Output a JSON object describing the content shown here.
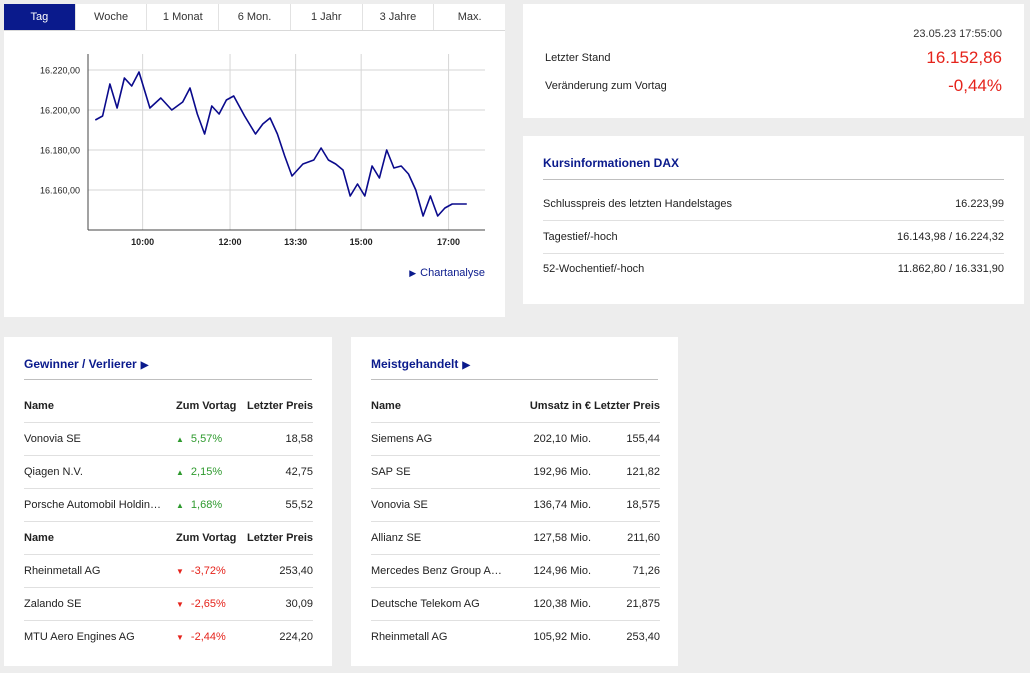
{
  "tabs": [
    "Tag",
    "Woche",
    "1 Monat",
    "6 Mon.",
    "1 Jahr",
    "3 Jahre",
    "Max."
  ],
  "active_tab": "Tag",
  "chart_data": {
    "type": "line",
    "x_ticks": [
      "10:00",
      "12:00",
      "13:30",
      "15:00",
      "17:00"
    ],
    "y_ticks": [
      "16.160,00",
      "16.180,00",
      "16.200,00",
      "16.220,00"
    ],
    "ylim": [
      16140,
      16228
    ],
    "color": "#0a0a8c",
    "series": [
      {
        "x_minutes_of_day": [
          535,
          545,
          555,
          565,
          575,
          585,
          595,
          610,
          625,
          640,
          655,
          665,
          675,
          685,
          695,
          705,
          715,
          725,
          740,
          755,
          765,
          775,
          785,
          795,
          805,
          820,
          835,
          845,
          855,
          865,
          875,
          885,
          895,
          905,
          915,
          925,
          935,
          945,
          955,
          965,
          975,
          985,
          995,
          1005,
          1015,
          1025,
          1035,
          1045
        ],
        "values": [
          16195,
          16197,
          16213,
          16201,
          16216,
          16212,
          16219,
          16201,
          16206,
          16200,
          16204,
          16211,
          16198,
          16188,
          16202,
          16198,
          16205,
          16207,
          16197,
          16188,
          16193,
          16196,
          16188,
          16177,
          16167,
          16173,
          16175,
          16181,
          16175,
          16173,
          16170,
          16157,
          16163,
          16157,
          16172,
          16166,
          16180,
          16171,
          16172,
          16168,
          16160,
          16147,
          16157,
          16147,
          16151,
          16153,
          16153,
          16153
        ]
      }
    ]
  },
  "chart_link": "Chartanalyse",
  "quote": {
    "timestamp": "23.05.23 17:55:00",
    "last_label": "Letzter Stand",
    "last_value": "16.152,86",
    "change_label": "Veränderung zum Vortag",
    "change_value": "-0,44%",
    "accent": "#e5231b"
  },
  "kurs": {
    "title": "Kursinformationen DAX",
    "rows": [
      {
        "label": "Schlusspreis des letzten Handelstages",
        "value": "16.223,99"
      },
      {
        "label": "Tagestief/-hoch",
        "value": "16.143,98 / 16.224,32"
      },
      {
        "label": "52-Wochentief/-hoch",
        "value": "11.862,80 / 16.331,90"
      }
    ]
  },
  "gewinner": {
    "title": "Gewinner / Verlierer",
    "headers": [
      "Name",
      "Zum Vortag",
      "Letzter Preis"
    ],
    "winners": [
      {
        "name": "Vonovia SE",
        "change": "5,57%",
        "price": "18,58"
      },
      {
        "name": "Qiagen N.V.",
        "change": "2,15%",
        "price": "42,75"
      },
      {
        "name": "Porsche Automobil Holding…",
        "change": "1,68%",
        "price": "55,52"
      }
    ],
    "losers": [
      {
        "name": "Rheinmetall AG",
        "change": "-3,72%",
        "price": "253,40"
      },
      {
        "name": "Zalando SE",
        "change": "-2,65%",
        "price": "30,09"
      },
      {
        "name": "MTU Aero Engines AG",
        "change": "-2,44%",
        "price": "224,20"
      }
    ]
  },
  "meist": {
    "title": "Meistgehandelt",
    "headers": [
      "Name",
      "Umsatz in €",
      "Letzter Preis"
    ],
    "rows": [
      {
        "name": "Siemens AG",
        "umsatz": "202,10 Mio.",
        "price": "155,44"
      },
      {
        "name": "SAP SE",
        "umsatz": "192,96 Mio.",
        "price": "121,82"
      },
      {
        "name": "Vonovia SE",
        "umsatz": "136,74 Mio.",
        "price": "18,575"
      },
      {
        "name": "Allianz SE",
        "umsatz": "127,58 Mio.",
        "price": "211,60"
      },
      {
        "name": "Mercedes Benz Group AG …",
        "umsatz": "124,96 Mio.",
        "price": "71,26"
      },
      {
        "name": "Deutsche Telekom AG",
        "umsatz": "120,38 Mio.",
        "price": "21,875"
      },
      {
        "name": "Rheinmetall AG",
        "umsatz": "105,92 Mio.",
        "price": "253,40"
      }
    ]
  }
}
